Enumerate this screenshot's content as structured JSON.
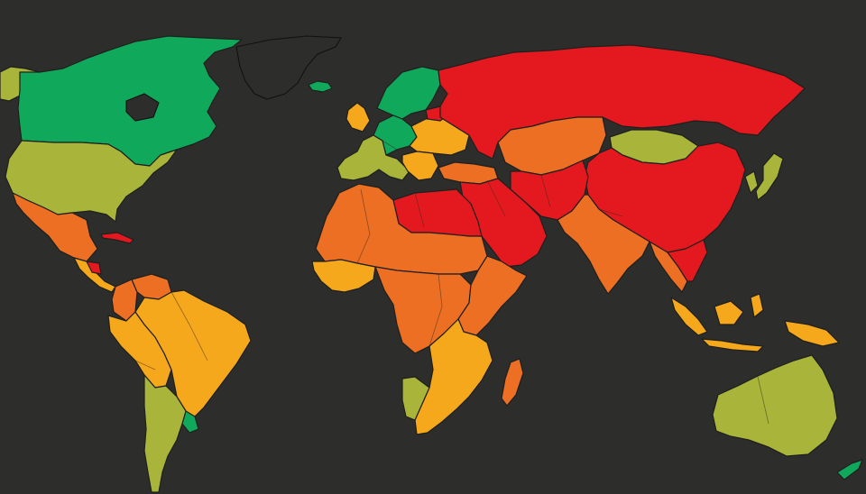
{
  "map": {
    "ocean_color": "#2d2d2b",
    "outline_color": "#1f1f1d",
    "categories": [
      {
        "key": "good",
        "color": "#10a85a"
      },
      {
        "key": "satisfactory",
        "color": "#a9b53a"
      },
      {
        "key": "problematic",
        "color": "#f6a81c"
      },
      {
        "key": "difficult",
        "color": "#ec6f24"
      },
      {
        "key": "very-serious",
        "color": "#e3191f"
      }
    ],
    "regions": [
      {
        "name": "canada",
        "category": "good"
      },
      {
        "name": "alaska",
        "category": "satisfactory"
      },
      {
        "name": "united-states",
        "category": "satisfactory"
      },
      {
        "name": "mexico",
        "category": "difficult"
      },
      {
        "name": "central-america",
        "category": "problematic"
      },
      {
        "name": "cuba",
        "category": "very-serious"
      },
      {
        "name": "nicaragua",
        "category": "very-serious"
      },
      {
        "name": "venezuela",
        "category": "difficult"
      },
      {
        "name": "colombia",
        "category": "difficult"
      },
      {
        "name": "brazil",
        "category": "problematic"
      },
      {
        "name": "peru-bolivia",
        "category": "problematic"
      },
      {
        "name": "argentina-chile",
        "category": "satisfactory"
      },
      {
        "name": "uruguay",
        "category": "good"
      },
      {
        "name": "iceland",
        "category": "good"
      },
      {
        "name": "nordics",
        "category": "good"
      },
      {
        "name": "uk",
        "category": "problematic"
      },
      {
        "name": "western-europe",
        "category": "satisfactory"
      },
      {
        "name": "central-europe",
        "category": "good"
      },
      {
        "name": "eastern-europe",
        "category": "problematic"
      },
      {
        "name": "balkans",
        "category": "problematic"
      },
      {
        "name": "belarus",
        "category": "very-serious"
      },
      {
        "name": "russia",
        "category": "very-serious"
      },
      {
        "name": "turkey",
        "category": "difficult"
      },
      {
        "name": "central-asia",
        "category": "difficult"
      },
      {
        "name": "middle-east",
        "category": "very-serious"
      },
      {
        "name": "iran-afghanistan",
        "category": "very-serious"
      },
      {
        "name": "india-pakistan",
        "category": "difficult"
      },
      {
        "name": "china",
        "category": "very-serious"
      },
      {
        "name": "mongolia",
        "category": "satisfactory"
      },
      {
        "name": "korea-japan",
        "category": "satisfactory"
      },
      {
        "name": "southeast-asia",
        "category": "difficult"
      },
      {
        "name": "vietnam-laos",
        "category": "very-serious"
      },
      {
        "name": "indonesia",
        "category": "problematic"
      },
      {
        "name": "png",
        "category": "problematic"
      },
      {
        "name": "australia",
        "category": "satisfactory"
      },
      {
        "name": "new-zealand",
        "category": "good"
      },
      {
        "name": "north-africa",
        "category": "very-serious"
      },
      {
        "name": "west-africa",
        "category": "difficult"
      },
      {
        "name": "west-africa-coast",
        "category": "problematic"
      },
      {
        "name": "central-africa",
        "category": "difficult"
      },
      {
        "name": "east-africa",
        "category": "difficult"
      },
      {
        "name": "southern-africa",
        "category": "problematic"
      },
      {
        "name": "namibia",
        "category": "satisfactory"
      },
      {
        "name": "madagascar",
        "category": "difficult"
      },
      {
        "name": "greenland",
        "category": "none"
      }
    ]
  }
}
